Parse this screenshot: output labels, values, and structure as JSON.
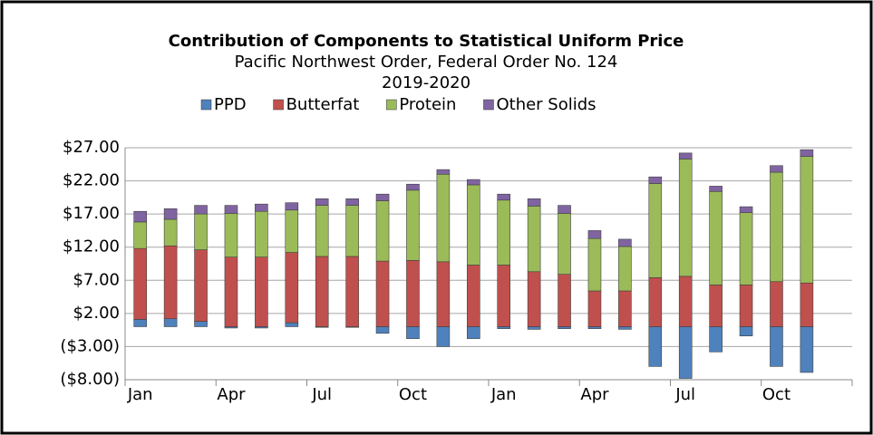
{
  "chart_data": {
    "type": "stacked-bar",
    "title": "Contribution of Components to Statistical Uniform Price",
    "subtitle": "Pacific Northwest Order, Federal Order No. 124",
    "subtitle2": "2019-2020",
    "categories": [
      "Jan",
      null,
      null,
      "Apr",
      null,
      null,
      "Jul",
      null,
      null,
      "Oct",
      null,
      null,
      "Jan",
      null,
      null,
      "Apr",
      null,
      null,
      "Jul",
      null,
      null,
      "Oct",
      null,
      null
    ],
    "series": [
      {
        "name": "PPD",
        "color": "#4f81bd",
        "values": [
          1.1,
          1.2,
          0.8,
          -0.2,
          -0.2,
          0.6,
          -0.1,
          -0.1,
          -1.0,
          -1.8,
          -3.0,
          -1.8,
          -0.3,
          -0.4,
          -0.3,
          -0.3,
          -0.4,
          -6.0,
          -7.8,
          -3.8,
          -1.4,
          -6.0,
          -6.9,
          null
        ]
      },
      {
        "name": "Butterfat",
        "color": "#c0504d",
        "values": [
          10.7,
          11.0,
          10.8,
          10.5,
          10.5,
          10.6,
          10.6,
          10.6,
          9.9,
          10.0,
          9.8,
          9.3,
          9.3,
          8.3,
          7.9,
          5.4,
          5.4,
          7.4,
          7.6,
          6.3,
          6.3,
          6.8,
          6.6,
          null
        ]
      },
      {
        "name": "Protein",
        "color": "#9bbb59",
        "values": [
          4.0,
          4.0,
          5.4,
          6.6,
          6.9,
          6.4,
          7.7,
          7.7,
          9.1,
          10.6,
          13.2,
          12.1,
          9.8,
          9.9,
          9.2,
          7.9,
          6.7,
          14.2,
          17.7,
          14.1,
          10.9,
          16.5,
          19.1,
          null
        ]
      },
      {
        "name": "Other Solids",
        "color": "#8064a2",
        "values": [
          1.6,
          1.6,
          1.3,
          1.2,
          1.1,
          1.1,
          1.0,
          1.0,
          1.0,
          0.9,
          0.7,
          0.8,
          0.9,
          1.1,
          1.2,
          1.2,
          1.1,
          1.0,
          0.9,
          0.8,
          0.9,
          1.0,
          1.0,
          null
        ]
      }
    ],
    "ylim": [
      -8,
      27
    ],
    "yticks": [
      {
        "value": -8,
        "label": "($8.00)"
      },
      {
        "value": -3,
        "label": "($3.00)"
      },
      {
        "value": 2,
        "label": "$2.00"
      },
      {
        "value": 7,
        "label": "$7.00"
      },
      {
        "value": 12,
        "label": "$12.00"
      },
      {
        "value": 17,
        "label": "$17.00"
      },
      {
        "value": 22,
        "label": "$22.00"
      },
      {
        "value": 27,
        "label": "$27.00"
      }
    ],
    "grid": true,
    "legend": "top"
  }
}
